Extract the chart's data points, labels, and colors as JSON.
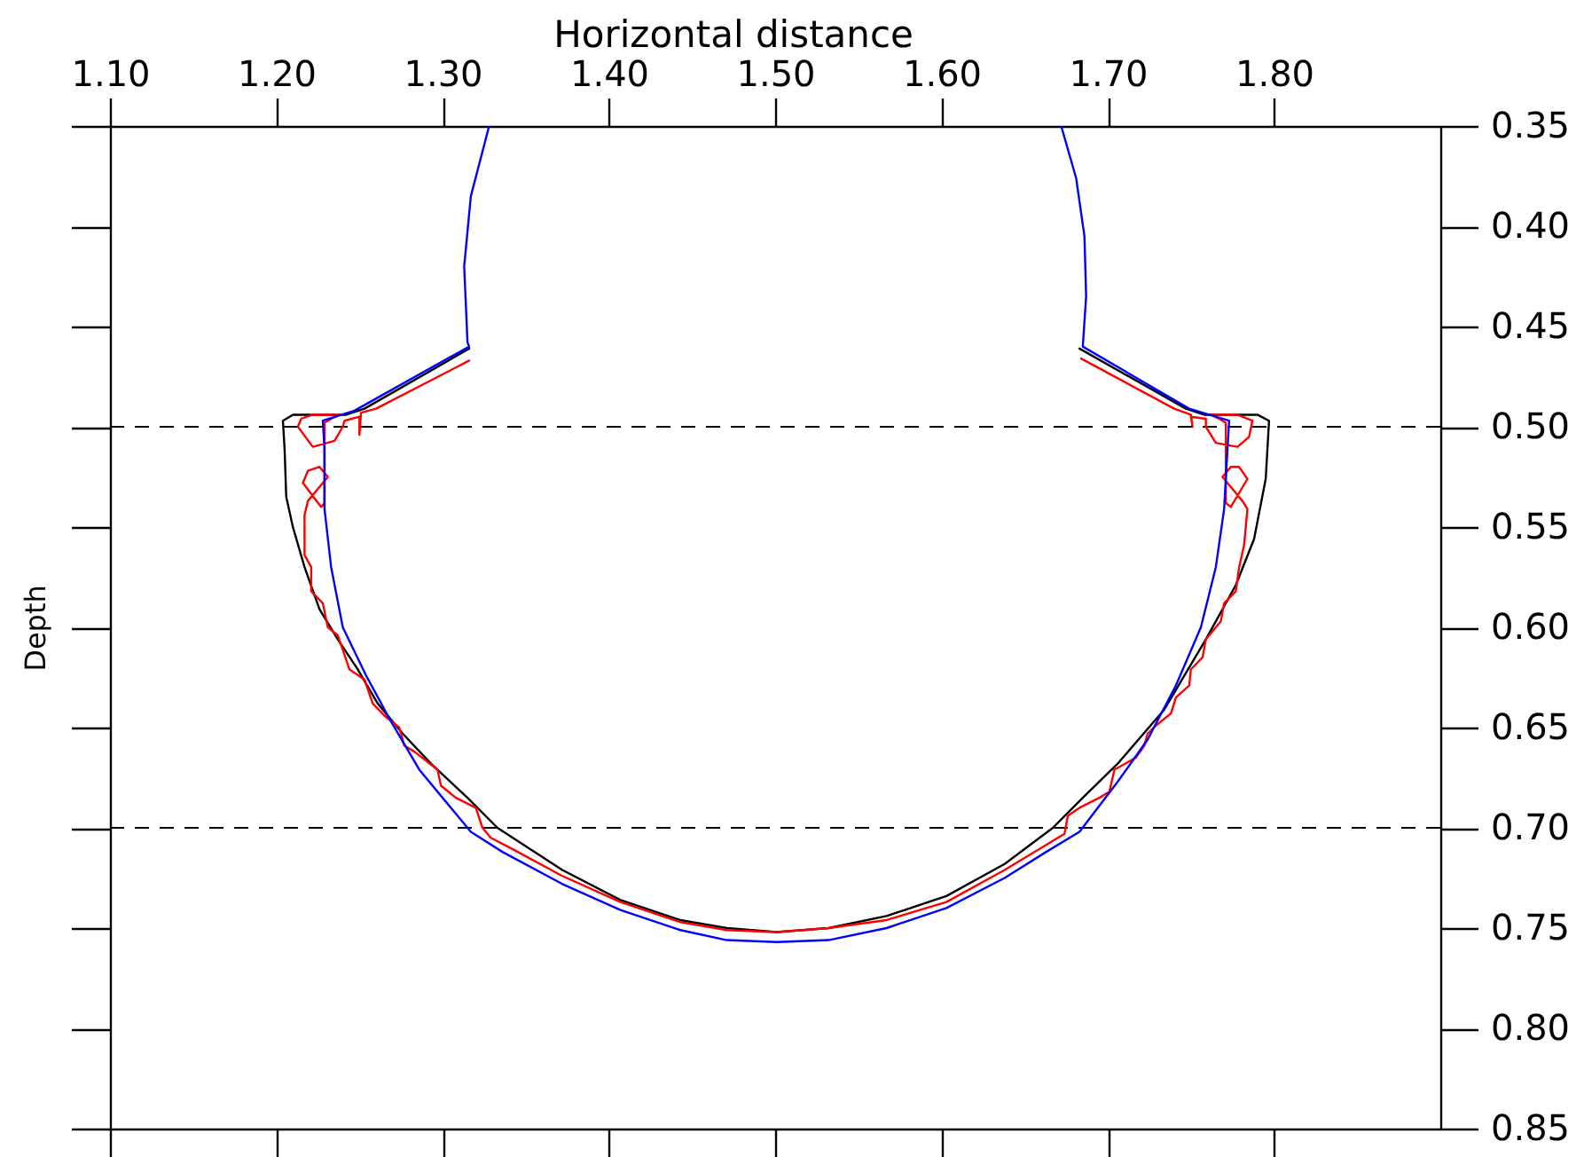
{
  "chart_data": {
    "type": "line",
    "xlabel": "Horizontal distance",
    "ylabel": "Depth",
    "xlim": [
      1.1,
      1.9
    ],
    "ylim": [
      0.85,
      0.35
    ],
    "xticks": [
      {
        "value": 1.1,
        "label": "1.10"
      },
      {
        "value": 1.2,
        "label": "1.20"
      },
      {
        "value": 1.3,
        "label": "1.30"
      },
      {
        "value": 1.4,
        "label": "1.40"
      },
      {
        "value": 1.5,
        "label": "1.50"
      },
      {
        "value": 1.6,
        "label": "1.60"
      },
      {
        "value": 1.7,
        "label": "1.70"
      },
      {
        "value": 1.8,
        "label": "1.80"
      }
    ],
    "yticks": [
      0.35,
      {
        "value": 0.4,
        "label": "0.40"
      },
      0.45,
      {
        "value": 0.5,
        "label": "0.50"
      },
      0.55,
      {
        "value": 0.6,
        "label": "0.60"
      },
      0.65,
      {
        "value": 0.7,
        "label": "0.70"
      },
      0.75,
      {
        "value": 0.8,
        "label": "0.80"
      },
      0.85
    ],
    "grid": false,
    "ref_lines": [
      {
        "axis": "y",
        "value": 0.5,
        "color": "#000000",
        "line_style": "dashed"
      },
      {
        "axis": "y",
        "value": 0.7,
        "color": "#000000",
        "line_style": "dashed"
      }
    ],
    "series": [
      {
        "color": "#000000",
        "x": [
          1.316,
          1.253,
          1.242,
          1.213,
          1.21,
          1.204,
          1.205,
          1.206,
          1.21,
          1.217,
          1.226,
          1.237,
          1.249,
          1.261,
          1.276,
          1.293,
          1.315,
          1.333,
          1.372,
          1.407,
          1.443,
          1.471,
          1.501,
          1.532,
          1.567,
          1.603,
          1.638,
          1.667,
          1.685,
          1.706,
          1.734,
          1.759,
          1.777,
          1.788,
          1.795,
          1.797,
          1.79,
          1.787,
          1.758,
          1.747,
          1.683
        ],
        "values": [
          0.461,
          0.491,
          0.494,
          0.494,
          0.494,
          0.497,
          0.511,
          0.535,
          0.55,
          0.57,
          0.591,
          0.606,
          0.621,
          0.638,
          0.653,
          0.668,
          0.685,
          0.7,
          0.721,
          0.736,
          0.746,
          0.75,
          0.752,
          0.75,
          0.744,
          0.734,
          0.718,
          0.7,
          0.685,
          0.668,
          0.641,
          0.606,
          0.579,
          0.556,
          0.526,
          0.497,
          0.494,
          0.494,
          0.494,
          0.491,
          0.461
        ]
      },
      {
        "color": "#ff0000",
        "x": [
          1.316,
          1.26,
          1.251,
          1.25,
          1.25,
          1.241,
          1.24,
          1.235,
          1.222,
          1.213,
          1.215,
          1.222,
          1.238,
          1.233,
          1.229,
          1.229,
          1.229,
          1.227,
          1.216,
          1.219,
          1.226,
          1.231,
          1.225,
          1.219,
          1.217,
          1.217,
          1.221,
          1.221,
          1.228,
          1.231,
          1.237,
          1.244,
          1.253,
          1.258,
          1.265,
          1.274,
          1.277,
          1.283,
          1.297,
          1.299,
          1.308,
          1.32,
          1.324,
          1.329,
          1.343,
          1.372,
          1.407,
          1.443,
          1.471,
          1.501,
          1.532,
          1.567,
          1.603,
          1.638,
          1.674,
          1.676,
          1.683,
          1.695,
          1.701,
          1.704,
          1.717,
          1.722,
          1.724,
          1.729,
          1.738,
          1.741,
          1.749,
          1.75,
          1.757,
          1.759,
          1.768,
          1.77,
          1.777,
          1.779,
          1.782,
          1.784,
          1.781,
          1.775,
          1.769,
          1.774,
          1.779,
          1.784,
          1.774,
          1.771,
          1.771,
          1.771,
          1.767,
          1.762,
          1.778,
          1.787,
          1.785,
          1.778,
          1.765,
          1.759,
          1.759,
          1.75,
          1.751,
          1.75,
          1.74,
          1.684
        ],
        "values": [
          0.467,
          0.491,
          0.493,
          0.504,
          0.495,
          0.497,
          0.5,
          0.507,
          0.51,
          0.5,
          0.496,
          0.494,
          0.494,
          0.496,
          0.498,
          0.512,
          0.538,
          0.54,
          0.528,
          0.522,
          0.52,
          0.525,
          0.531,
          0.537,
          0.544,
          0.564,
          0.57,
          0.582,
          0.588,
          0.6,
          0.604,
          0.621,
          0.626,
          0.638,
          0.644,
          0.65,
          0.659,
          0.662,
          0.671,
          0.679,
          0.685,
          0.69,
          0.7,
          0.705,
          0.711,
          0.724,
          0.737,
          0.747,
          0.751,
          0.752,
          0.75,
          0.746,
          0.737,
          0.721,
          0.703,
          0.694,
          0.69,
          0.685,
          0.682,
          0.671,
          0.665,
          0.659,
          0.653,
          0.649,
          0.643,
          0.635,
          0.629,
          0.621,
          0.615,
          0.606,
          0.597,
          0.588,
          0.582,
          0.57,
          0.559,
          0.541,
          0.537,
          0.531,
          0.525,
          0.52,
          0.52,
          0.526,
          0.54,
          0.538,
          0.512,
          0.498,
          0.496,
          0.494,
          0.494,
          0.497,
          0.505,
          0.51,
          0.508,
          0.5,
          0.496,
          0.495,
          0.5,
          0.494,
          0.491,
          0.466
        ]
      },
      {
        "color": "#0000ff",
        "x": [
          1.328,
          1.317,
          1.313,
          1.315,
          1.316,
          1.247,
          1.228,
          1.229,
          1.229,
          1.233,
          1.24,
          1.254,
          1.269,
          1.286,
          1.302,
          1.317,
          1.336,
          1.372,
          1.407,
          1.443,
          1.471,
          1.501,
          1.532,
          1.567,
          1.603,
          1.638,
          1.663,
          1.683,
          1.706,
          1.724,
          1.741,
          1.756,
          1.765,
          1.77,
          1.772,
          1.773,
          1.749,
          1.685,
          1.687,
          1.686,
          1.681,
          1.672
        ],
        "values": [
          0.35,
          0.385,
          0.42,
          0.458,
          0.46,
          0.492,
          0.497,
          0.511,
          0.541,
          0.57,
          0.6,
          0.624,
          0.647,
          0.671,
          0.687,
          0.702,
          0.712,
          0.728,
          0.741,
          0.751,
          0.756,
          0.757,
          0.756,
          0.75,
          0.74,
          0.725,
          0.712,
          0.702,
          0.677,
          0.656,
          0.629,
          0.6,
          0.57,
          0.541,
          0.511,
          0.497,
          0.491,
          0.46,
          0.435,
          0.405,
          0.376,
          0.35
        ]
      }
    ]
  }
}
